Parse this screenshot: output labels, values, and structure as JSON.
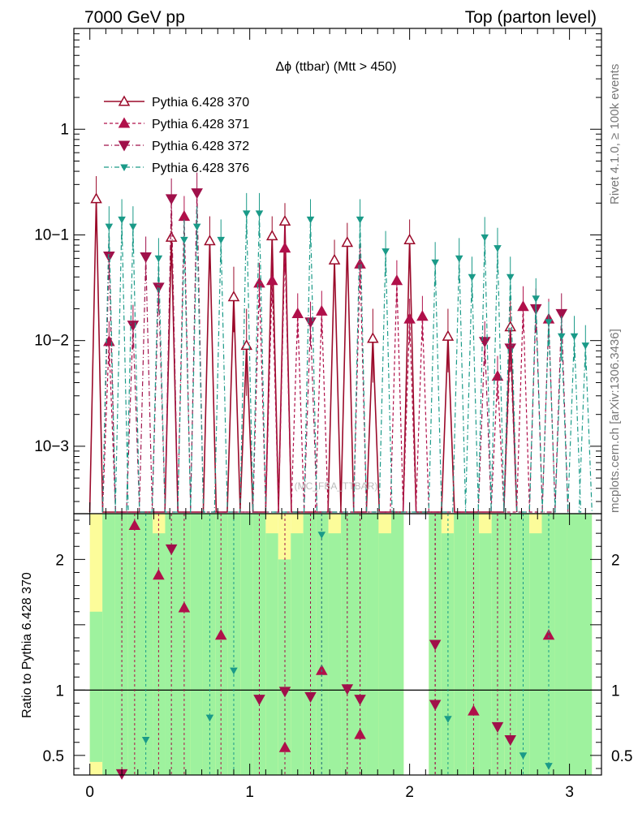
{
  "header": {
    "left": "7000 GeV pp",
    "right": "Top (parton level)"
  },
  "side_labels": {
    "rivet": "Rivet 4.1.0, ≥ 100k events",
    "mcplots": "mcplots.cern.ch [arXiv:1306.3436]"
  },
  "colors": {
    "s370": "#9b0a2a",
    "s371": "#b0104a",
    "s372": "#a0104a",
    "s376": "#1a9a88",
    "band_inner": "#9ef29e",
    "band_outer": "#fcfc9a"
  },
  "chart_data": [
    {
      "type": "line",
      "panel": "main",
      "title": "Δϕ (ttbar) (Mtt > 450)",
      "watermark": "(MC_FBA_TTBAR)",
      "yscale": "log",
      "xlim": [
        -0.1,
        3.2
      ],
      "ylim": [
        0.00023,
        9.0
      ],
      "ytick_values": [
        0.001,
        0.01,
        0.1,
        1
      ],
      "ytick_labels": [
        "10−3",
        "10−2",
        "10−1",
        "1"
      ],
      "legend_position": "top-left",
      "series": [
        {
          "name": "Pythia 6.428 370",
          "marker": "open-triangle-up",
          "line": "solid",
          "color": "#9b0a2a",
          "points": [
            {
              "x": 0.04,
              "y": 0.22,
              "err": [
                0.15,
                0.36
              ]
            },
            {
              "x": 0.51,
              "y": 0.095,
              "err": [
                0.06,
                0.16
              ]
            },
            {
              "x": 0.75,
              "y": 0.088,
              "err": [
                0.05,
                0.15
              ]
            },
            {
              "x": 0.9,
              "y": 0.026,
              "err": [
                0.012,
                0.05
              ]
            },
            {
              "x": 0.98,
              "y": 0.009,
              "err": [
                0.003,
                0.02
              ]
            },
            {
              "x": 1.14,
              "y": 0.098,
              "err": [
                0.07,
                0.15
              ]
            },
            {
              "x": 1.22,
              "y": 0.135,
              "err": [
                0.09,
                0.2
              ]
            },
            {
              "x": 1.53,
              "y": 0.058,
              "err": [
                0.04,
                0.09
              ]
            },
            {
              "x": 1.61,
              "y": 0.085,
              "err": [
                0.06,
                0.13
              ]
            },
            {
              "x": 1.77,
              "y": 0.0105,
              "err": [
                0.004,
                0.02
              ]
            },
            {
              "x": 2.0,
              "y": 0.09,
              "err": [
                0.06,
                0.14
              ]
            },
            {
              "x": 2.24,
              "y": 0.011,
              "err": [
                0.005,
                0.02
              ]
            },
            {
              "x": 2.63,
              "y": 0.0135,
              "err": [
                0.006,
                0.025
              ]
            }
          ]
        },
        {
          "name": "Pythia 6.428 371",
          "marker": "filled-triangle-up",
          "line": "dashed",
          "color": "#b0104a",
          "points": [
            {
              "x": 0.12,
              "y": 0.0098
            },
            {
              "x": 0.59,
              "y": 0.15
            },
            {
              "x": 1.06,
              "y": 0.035
            },
            {
              "x": 1.14,
              "y": 0.037
            },
            {
              "x": 1.22,
              "y": 0.075
            },
            {
              "x": 1.3,
              "y": 0.018
            },
            {
              "x": 1.45,
              "y": 0.019
            },
            {
              "x": 1.69,
              "y": 0.053
            },
            {
              "x": 1.92,
              "y": 0.037
            },
            {
              "x": 2.0,
              "y": 0.016
            },
            {
              "x": 2.08,
              "y": 0.017
            },
            {
              "x": 2.55,
              "y": 0.0046
            },
            {
              "x": 2.71,
              "y": 0.021
            },
            {
              "x": 2.87,
              "y": 0.016
            }
          ]
        },
        {
          "name": "Pythia 6.428 372",
          "marker": "filled-triangle-down",
          "line": "dashdot",
          "color": "#a0104a",
          "points": [
            {
              "x": 0.12,
              "y": 0.063
            },
            {
              "x": 0.27,
              "y": 0.014
            },
            {
              "x": 0.35,
              "y": 0.062
            },
            {
              "x": 0.43,
              "y": 0.032
            },
            {
              "x": 0.51,
              "y": 0.22
            },
            {
              "x": 0.67,
              "y": 0.25
            },
            {
              "x": 1.38,
              "y": 0.015
            },
            {
              "x": 2.47,
              "y": 0.0098
            },
            {
              "x": 2.63,
              "y": 0.0085
            },
            {
              "x": 2.79,
              "y": 0.02
            },
            {
              "x": 2.95,
              "y": 0.018
            }
          ]
        },
        {
          "name": "Pythia 6.428 376",
          "marker": "small-triangle-down",
          "line": "dashdot",
          "color": "#1a9a88",
          "points": [
            {
              "x": 0.12,
              "y": 0.12
            },
            {
              "x": 0.2,
              "y": 0.14
            },
            {
              "x": 0.27,
              "y": 0.12
            },
            {
              "x": 0.43,
              "y": 0.06
            },
            {
              "x": 0.59,
              "y": 0.09
            },
            {
              "x": 0.67,
              "y": 0.12
            },
            {
              "x": 0.82,
              "y": 0.09
            },
            {
              "x": 0.98,
              "y": 0.16
            },
            {
              "x": 1.06,
              "y": 0.16
            },
            {
              "x": 1.38,
              "y": 0.14
            },
            {
              "x": 1.69,
              "y": 0.14
            },
            {
              "x": 1.85,
              "y": 0.07
            },
            {
              "x": 2.16,
              "y": 0.055
            },
            {
              "x": 2.31,
              "y": 0.06
            },
            {
              "x": 2.39,
              "y": 0.04
            },
            {
              "x": 2.47,
              "y": 0.095
            },
            {
              "x": 2.55,
              "y": 0.075
            },
            {
              "x": 2.63,
              "y": 0.04
            },
            {
              "x": 2.79,
              "y": 0.025
            },
            {
              "x": 2.87,
              "y": 0.015
            },
            {
              "x": 2.95,
              "y": 0.011
            },
            {
              "x": 3.03,
              "y": 0.011
            },
            {
              "x": 3.1,
              "y": 0.009
            }
          ]
        }
      ]
    },
    {
      "type": "line",
      "panel": "ratio",
      "ylabel": "Ratio to Pythia 6.428 370",
      "xlim": [
        -0.1,
        3.2
      ],
      "ylim": [
        0.35,
        2.35
      ],
      "xtick_values": [
        0,
        1,
        2,
        3
      ],
      "xtick_labels": [
        "0",
        "1",
        "2",
        "3"
      ],
      "ytick_values": [
        0.5,
        1,
        2
      ],
      "ytick_labels": [
        "0.5",
        "1",
        "2"
      ],
      "reference_line": 1,
      "bands": {
        "x_edges": [
          0.0,
          0.0785,
          0.157,
          0.236,
          0.314,
          0.393,
          0.471,
          0.55,
          0.628,
          0.707,
          0.785,
          0.864,
          0.942,
          1.021,
          1.1,
          1.178,
          1.257,
          1.335,
          1.414,
          1.492,
          1.571,
          1.649,
          1.728,
          1.806,
          1.885,
          1.963,
          2.042,
          2.12,
          2.199,
          2.277,
          2.356,
          2.434,
          2.513,
          2.592,
          2.67,
          2.749,
          2.827,
          2.906,
          2.984,
          3.063,
          3.14
        ],
        "inner_high": [
          1.6,
          2.35,
          2.35,
          2.35,
          2.35,
          2.2,
          2.35,
          2.35,
          2.35,
          2.35,
          2.35,
          2.35,
          2.35,
          2.35,
          2.2,
          2.0,
          2.2,
          2.35,
          2.35,
          2.2,
          2.35,
          2.35,
          2.35,
          2.2,
          2.35,
          2.35,
          2.35,
          2.35,
          2.2,
          2.35,
          2.35,
          2.2,
          2.35,
          2.35,
          2.35,
          2.2,
          2.35,
          2.35,
          2.35,
          2.35
        ],
        "outer_high": [
          2.35,
          2.35,
          2.35,
          2.35,
          2.35,
          2.35,
          2.35,
          2.35,
          2.35,
          2.35,
          2.35,
          2.35,
          2.35,
          2.35,
          2.35,
          2.35,
          2.35,
          2.35,
          2.35,
          2.35,
          2.35,
          2.35,
          2.35,
          2.35,
          2.35,
          2.35,
          2.35,
          2.35,
          2.35,
          2.35,
          2.35,
          2.35,
          2.35,
          2.35,
          2.35,
          2.35,
          2.35,
          2.35,
          2.35,
          2.35
        ],
        "inner_low": [
          0.45,
          0.35,
          0.35,
          0.35,
          0.35,
          0.35,
          0.35,
          0.35,
          0.35,
          0.35,
          0.35,
          0.35,
          0.35,
          0.35,
          0.35,
          0.35,
          0.35,
          0.35,
          0.35,
          0.35,
          0.35,
          0.35,
          0.35,
          0.35,
          0.35,
          0.35,
          0.35,
          0.35,
          0.35,
          0.35,
          0.35,
          0.35,
          0.35,
          0.35,
          0.35,
          0.35,
          0.35,
          0.35,
          0.35,
          0.35
        ],
        "outer_low": [
          0.35,
          0.35,
          0.35,
          0.35,
          0.35,
          0.35,
          0.35,
          0.35,
          0.35,
          0.35,
          0.35,
          0.35,
          0.35,
          0.35,
          0.35,
          0.35,
          0.35,
          0.35,
          0.35,
          0.35,
          0.35,
          0.35,
          0.35,
          0.35,
          0.35,
          0.35,
          0.35,
          0.35,
          0.35,
          0.35,
          0.35,
          0.35,
          0.35,
          0.35,
          0.35,
          0.35,
          0.35,
          0.35,
          0.35,
          0.35
        ],
        "gap_bins": [
          25,
          26
        ]
      },
      "series": [
        {
          "name": "Pythia 6.428 371",
          "marker": "filled-triangle-up",
          "color": "#b0104a",
          "points": [
            {
              "x": 0.28,
              "y": 2.26
            },
            {
              "x": 0.43,
              "y": 1.88
            },
            {
              "x": 0.59,
              "y": 1.63
            },
            {
              "x": 0.82,
              "y": 1.42
            },
            {
              "x": 1.22,
              "y": 0.56
            },
            {
              "x": 1.45,
              "y": 1.15
            },
            {
              "x": 1.69,
              "y": 0.66
            },
            {
              "x": 2.4,
              "y": 0.84
            },
            {
              "x": 2.87,
              "y": 1.42
            }
          ]
        },
        {
          "name": "Pythia 6.428 372",
          "marker": "filled-triangle-down",
          "color": "#a0104a",
          "points": [
            {
              "x": 0.2,
              "y": 0.36
            },
            {
              "x": 0.51,
              "y": 2.08
            },
            {
              "x": 1.06,
              "y": 0.93
            },
            {
              "x": 1.22,
              "y": 0.99
            },
            {
              "x": 1.38,
              "y": 0.95
            },
            {
              "x": 1.61,
              "y": 1.01
            },
            {
              "x": 1.69,
              "y": 0.93
            },
            {
              "x": 2.16,
              "y": 0.89
            },
            {
              "x": 2.16,
              "y": 1.35
            },
            {
              "x": 2.55,
              "y": 0.72
            },
            {
              "x": 2.63,
              "y": 0.62
            }
          ]
        },
        {
          "name": "Pythia 6.428 376",
          "marker": "small-triangle-down",
          "color": "#1a9a88",
          "points": [
            {
              "x": 0.35,
              "y": 0.62
            },
            {
              "x": 0.75,
              "y": 0.79
            },
            {
              "x": 0.9,
              "y": 1.15
            },
            {
              "x": 1.45,
              "y": 2.19
            },
            {
              "x": 2.24,
              "y": 0.78
            },
            {
              "x": 2.71,
              "y": 0.5
            },
            {
              "x": 2.87,
              "y": 0.42
            }
          ]
        }
      ]
    }
  ]
}
